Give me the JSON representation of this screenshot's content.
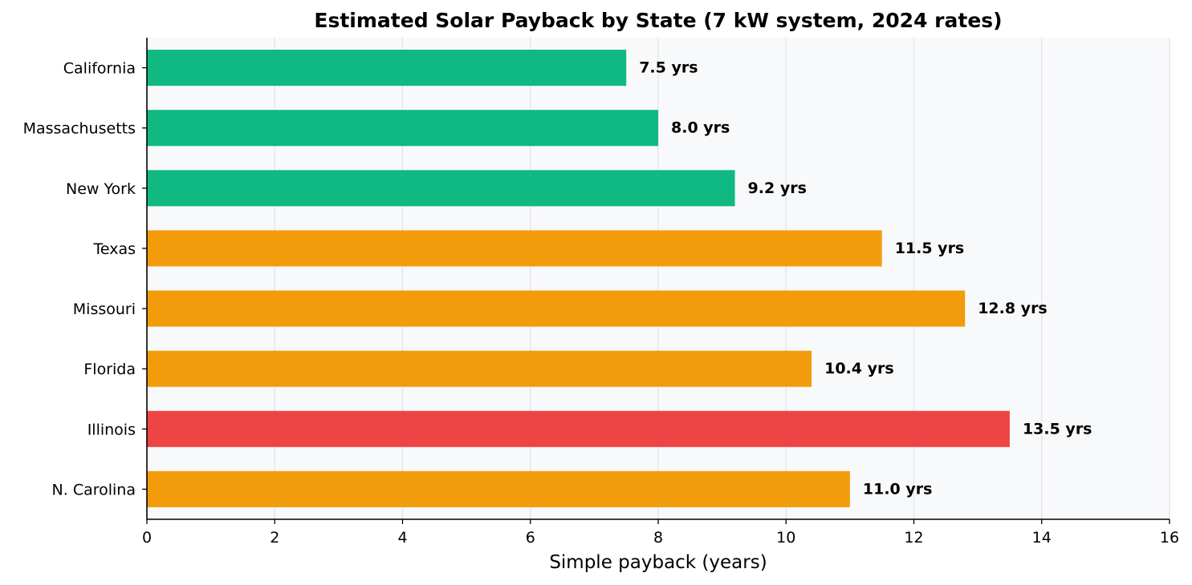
{
  "chart_data": {
    "type": "bar",
    "orientation": "horizontal",
    "title": "Estimated Solar Payback by State (7 kW system, 2024 rates)",
    "xlabel": "Simple payback (years)",
    "ylabel": "",
    "xlim": [
      0,
      16
    ],
    "x_ticks": [
      0,
      2,
      4,
      6,
      8,
      10,
      12,
      14,
      16
    ],
    "grid": "vertical",
    "categories": [
      "California",
      "Massachusetts",
      "New York",
      "Texas",
      "Missouri",
      "Florida",
      "Illinois",
      "N. Carolina"
    ],
    "values": [
      7.5,
      8.0,
      9.2,
      11.5,
      12.8,
      10.4,
      13.5,
      11.0
    ],
    "data_labels": [
      "7.5 yrs",
      "8.0 yrs",
      "9.2 yrs",
      "11.5 yrs",
      "12.8 yrs",
      "10.4 yrs",
      "13.5 yrs",
      "11.0 yrs"
    ],
    "bar_colors": [
      "#10b981",
      "#10b981",
      "#10b981",
      "#f39c0b",
      "#f39c0b",
      "#f39c0b",
      "#ef4444",
      "#f39c0b"
    ],
    "plot_background": "#f8f9fb",
    "grid_color": "#e2e4e8"
  }
}
